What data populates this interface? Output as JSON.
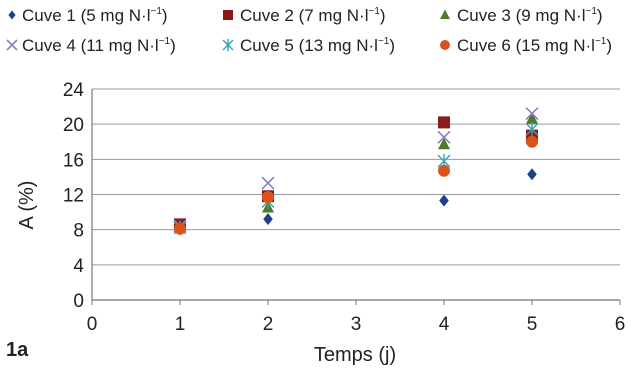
{
  "chart_data": {
    "type": "scatter",
    "panel_label": "1a",
    "xlabel": "Temps (j)",
    "ylabel": "A (%)",
    "xlim": [
      0,
      6
    ],
    "ylim": [
      0,
      24
    ],
    "x_ticks": [
      "0",
      "1",
      "2",
      "3",
      "4",
      "5",
      "6"
    ],
    "y_ticks": [
      "0",
      "4",
      "8",
      "12",
      "16",
      "20",
      "24"
    ],
    "grid": "horizontal",
    "legend_position": "top",
    "series": [
      {
        "name": "Cuve 1 (5 mg N·l",
        "name_sup": "−1",
        "name_end": ")",
        "marker": "diamond",
        "color": "#1f3f8f",
        "points": [
          {
            "x": 1,
            "y": 8.5
          },
          {
            "x": 2,
            "y": 9.2
          },
          {
            "x": 4,
            "y": 11.3
          },
          {
            "x": 5,
            "y": 14.3
          }
        ]
      },
      {
        "name": "Cuve 2 (7 mg N·l",
        "name_sup": "−1",
        "name_end": ")",
        "marker": "square",
        "color": "#8b1a1a",
        "points": [
          {
            "x": 1,
            "y": 8.6
          },
          {
            "x": 2,
            "y": 11.8
          },
          {
            "x": 4,
            "y": 20.2
          },
          {
            "x": 5,
            "y": 18.7
          }
        ]
      },
      {
        "name": "Cuve 3 (9 mg N·l",
        "name_sup": "−1",
        "name_end": ")",
        "marker": "triangle",
        "color": "#4f7a28",
        "points": [
          {
            "x": 1,
            "y": 8.3
          },
          {
            "x": 2,
            "y": 10.5
          },
          {
            "x": 4,
            "y": 17.7
          },
          {
            "x": 5,
            "y": 20.6
          }
        ]
      },
      {
        "name": "Cuve 4 (11 mg N·l",
        "name_sup": "−1",
        "name_end": ")",
        "marker": "x",
        "color": "#8a7fc4",
        "points": [
          {
            "x": 1,
            "y": 8.4
          },
          {
            "x": 2,
            "y": 13.3
          },
          {
            "x": 4,
            "y": 18.5
          },
          {
            "x": 5,
            "y": 21.2
          }
        ]
      },
      {
        "name": "Cuve 5 (13 mg N·l",
        "name_sup": "−1",
        "name_end": ")",
        "marker": "asterisk",
        "color": "#2ea6b8",
        "points": [
          {
            "x": 1,
            "y": 8.2
          },
          {
            "x": 2,
            "y": 11.2
          },
          {
            "x": 4,
            "y": 15.8
          },
          {
            "x": 5,
            "y": 19.4
          }
        ]
      },
      {
        "name": "Cuve 6 (15 mg N·l",
        "name_sup": "−1",
        "name_end": ")",
        "marker": "circle",
        "color": "#d9541a",
        "points": [
          {
            "x": 1,
            "y": 8.1
          },
          {
            "x": 2,
            "y": 11.7
          },
          {
            "x": 4,
            "y": 14.7
          },
          {
            "x": 5,
            "y": 18.0
          }
        ]
      }
    ]
  }
}
